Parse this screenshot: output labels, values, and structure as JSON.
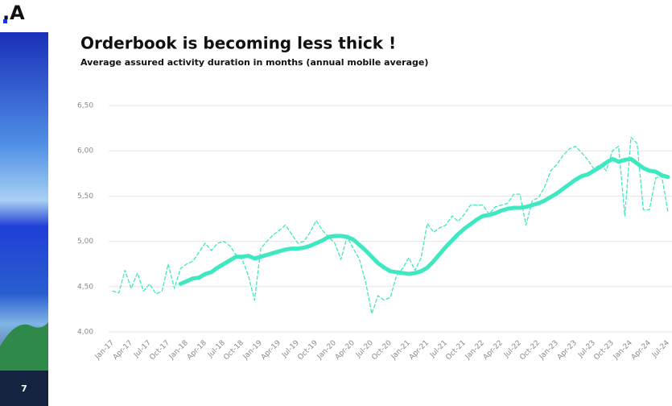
{
  "logo": ".A",
  "page_number": "7",
  "chart_data": {
    "type": "line",
    "title": "Orderbook is becoming less thick !",
    "subtitle": "Average assured activity duration in months (annual mobile average)",
    "categories": [
      "Jan-17",
      null,
      null,
      "Apr-17",
      null,
      null,
      "Jul-17",
      null,
      null,
      "Oct-17",
      null,
      null,
      "Jan-18",
      null,
      null,
      "Apr-18",
      null,
      null,
      "Jul-18",
      null,
      null,
      "Oct-18",
      null,
      null,
      "Jan-19",
      null,
      null,
      "Apr-19",
      null,
      null,
      "Jul-19",
      null,
      null,
      "Oct-19",
      null,
      null,
      "Jan-20",
      null,
      null,
      "Apr-20",
      null,
      null,
      "Jul-20",
      null,
      null,
      "Oct-20",
      null,
      null,
      "Jan-21",
      null,
      null,
      "Apr-21",
      null,
      null,
      "Jul-21",
      null,
      null,
      "Oct-21",
      null,
      null,
      "Jan-22",
      null,
      null,
      "Apr-22",
      null,
      null,
      "Jul-22",
      null,
      null,
      "Oct-22",
      null,
      null,
      "Jan-23",
      null,
      null,
      "Apr-23",
      null,
      null,
      "Jul-23",
      null,
      null,
      "Oct-23",
      null,
      null,
      "Jan-24",
      null,
      null,
      "Apr-24",
      null,
      null,
      "Jul-24"
    ],
    "series": [
      {
        "color": "#3ee8c0",
        "style": "dashed",
        "width": 1.3,
        "values": [
          4.45,
          4.43,
          4.68,
          4.48,
          4.65,
          4.45,
          4.53,
          4.42,
          4.45,
          4.75,
          4.48,
          4.7,
          4.75,
          4.78,
          4.88,
          4.98,
          4.9,
          4.98,
          5.0,
          4.95,
          4.85,
          4.8,
          4.62,
          4.35,
          4.92,
          5.0,
          5.07,
          5.12,
          5.18,
          5.08,
          4.98,
          5.0,
          5.1,
          5.23,
          5.12,
          5.05,
          4.98,
          4.8,
          5.05,
          4.92,
          4.8,
          4.55,
          4.2,
          4.4,
          4.35,
          4.38,
          4.62,
          4.7,
          4.82,
          4.68,
          4.82,
          5.2,
          5.1,
          5.15,
          5.18,
          5.28,
          5.22,
          5.3,
          5.4,
          5.4,
          5.4,
          5.3,
          5.38,
          5.4,
          5.42,
          5.52,
          5.52,
          5.18,
          5.45,
          5.48,
          5.6,
          5.78,
          5.85,
          5.95,
          6.02,
          6.05,
          5.98,
          5.9,
          5.8,
          5.85,
          5.78,
          6.0,
          6.05,
          5.28,
          6.15,
          6.08,
          5.35,
          5.35,
          5.7,
          5.72,
          5.32
        ]
      },
      {
        "color": "#3ee8c0",
        "style": "solid",
        "width": 5,
        "values": [
          null,
          null,
          null,
          null,
          null,
          null,
          null,
          null,
          null,
          null,
          null,
          4.53,
          4.56,
          4.59,
          4.6,
          4.64,
          4.66,
          4.71,
          4.75,
          4.79,
          4.83,
          4.83,
          4.84,
          4.81,
          4.83,
          4.85,
          4.87,
          4.89,
          4.91,
          4.92,
          4.92,
          4.93,
          4.95,
          4.98,
          5.01,
          5.05,
          5.06,
          5.06,
          5.05,
          5.02,
          4.96,
          4.9,
          4.83,
          4.76,
          4.71,
          4.67,
          4.66,
          4.65,
          4.64,
          4.65,
          4.67,
          4.71,
          4.78,
          4.86,
          4.94,
          5.01,
          5.08,
          5.14,
          5.19,
          5.24,
          5.28,
          5.29,
          5.31,
          5.34,
          5.36,
          5.37,
          5.37,
          5.38,
          5.4,
          5.42,
          5.45,
          5.49,
          5.53,
          5.58,
          5.63,
          5.68,
          5.72,
          5.74,
          5.78,
          5.82,
          5.87,
          5.91,
          5.88,
          5.9,
          5.91,
          5.86,
          5.81,
          5.78,
          5.77,
          5.73,
          5.71
        ]
      }
    ],
    "ylim": [
      4.0,
      6.5
    ],
    "yticks": [
      {
        "value": 4.0,
        "label": "4,00"
      },
      {
        "value": 4.5,
        "label": "4,50"
      },
      {
        "value": 5.0,
        "label": "5,00"
      },
      {
        "value": 5.5,
        "label": "5,50"
      },
      {
        "value": 6.0,
        "label": "6,00"
      },
      {
        "value": 6.5,
        "label": "6,50"
      }
    ],
    "grid": true
  }
}
